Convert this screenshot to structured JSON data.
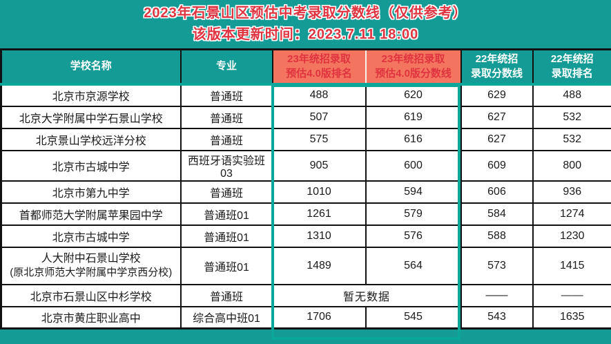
{
  "banner": {
    "title": "2023年石景山区预估中考录取分数线（仅供参考）",
    "subtitle": "该版本更新时间：2023.7.11 18:00"
  },
  "colors": {
    "teal": "#149B96",
    "highlight_teal": "#0BA79B",
    "salmon": "#F4755F",
    "red_text": "#E03340",
    "grid_black": "#111111"
  },
  "table": {
    "headers": [
      {
        "line1": "学校名称",
        "line2": ""
      },
      {
        "line1": "专业",
        "line2": ""
      },
      {
        "line1": "23年统招录取",
        "line2": "预估4.0版排名"
      },
      {
        "line1": "23年统招录取",
        "line2": "预估4.0版分数线"
      },
      {
        "line1": "22年统招",
        "line2": "录取分数线"
      },
      {
        "line1": "22年统招",
        "line2": "录取排名"
      }
    ],
    "rows": [
      {
        "school": "北京市京源学校",
        "major": "普通班",
        "rank23": "488",
        "score23": "620",
        "score22": "629",
        "rank22": "488"
      },
      {
        "school": "北京大学附属中学石景山学校",
        "major": "普通班",
        "rank23": "507",
        "score23": "619",
        "score22": "627",
        "rank22": "532"
      },
      {
        "school": "北京景山学校远洋分校",
        "major": "普通班",
        "rank23": "575",
        "score23": "616",
        "score22": "627",
        "rank22": "532"
      },
      {
        "school": "北京市古城中学",
        "major": "西班牙语实验班03",
        "rank23": "905",
        "score23": "600",
        "score22": "609",
        "rank22": "800"
      },
      {
        "school": "北京市第九中学",
        "major": "普通班",
        "rank23": "1010",
        "score23": "594",
        "score22": "606",
        "rank22": "936"
      },
      {
        "school": "首都师范大学附属苹果园中学",
        "major": "普通班01",
        "rank23": "1261",
        "score23": "579",
        "score22": "584",
        "rank22": "1274"
      },
      {
        "school": "北京市古城中学",
        "major": "普通班01",
        "rank23": "1310",
        "score23": "576",
        "score22": "588",
        "rank22": "1230"
      },
      {
        "school": "人大附中石景山学校",
        "school_line2": "(原北京师范大学附属中学京西分校)",
        "major": "普通班01",
        "rank23": "1489",
        "score23": "564",
        "score22": "573",
        "rank22": "1415",
        "tall": true
      },
      {
        "school": "北京市石景山区中杉学校",
        "major": "普通班",
        "merged23": "暂无数据",
        "score22": "——",
        "rank22": "——"
      },
      {
        "school": "北京市黄庄职业高中",
        "major": "综合高中班01",
        "rank23": "1706",
        "score23": "545",
        "score22": "543",
        "rank22": "1635"
      }
    ]
  },
  "chart_data": {
    "type": "table",
    "title": "2023年石景山区预估中考录取分数线（仅供参考）",
    "subtitle": "该版本更新时间：2023.7.11 18:00",
    "columns": [
      "学校名称",
      "专业",
      "23年统招录取预估4.0版排名",
      "23年统招录取预估4.0版分数线",
      "22年统招录取分数线",
      "22年统招录取排名"
    ],
    "rows": [
      [
        "北京市京源学校",
        "普通班",
        "488",
        "620",
        "629",
        "488"
      ],
      [
        "北京大学附属中学石景山学校",
        "普通班",
        "507",
        "619",
        "627",
        "532"
      ],
      [
        "北京景山学校远洋分校",
        "普通班",
        "575",
        "616",
        "627",
        "532"
      ],
      [
        "北京市古城中学",
        "西班牙语实验班03",
        "905",
        "600",
        "609",
        "800"
      ],
      [
        "北京市第九中学",
        "普通班",
        "1010",
        "594",
        "606",
        "936"
      ],
      [
        "首都师范大学附属苹果园中学",
        "普通班01",
        "1261",
        "579",
        "584",
        "1274"
      ],
      [
        "北京市古城中学",
        "普通班01",
        "1310",
        "576",
        "588",
        "1230"
      ],
      [
        "人大附中石景山学校(原北京师范大学附属中学京西分校)",
        "普通班01",
        "1489",
        "564",
        "573",
        "1415"
      ],
      [
        "北京市石景山区中杉学校",
        "普通班",
        "暂无数据",
        "暂无数据",
        "——",
        "——"
      ],
      [
        "北京市黄庄职业高中",
        "综合高中班01",
        "1706",
        "545",
        "543",
        "1635"
      ]
    ]
  }
}
